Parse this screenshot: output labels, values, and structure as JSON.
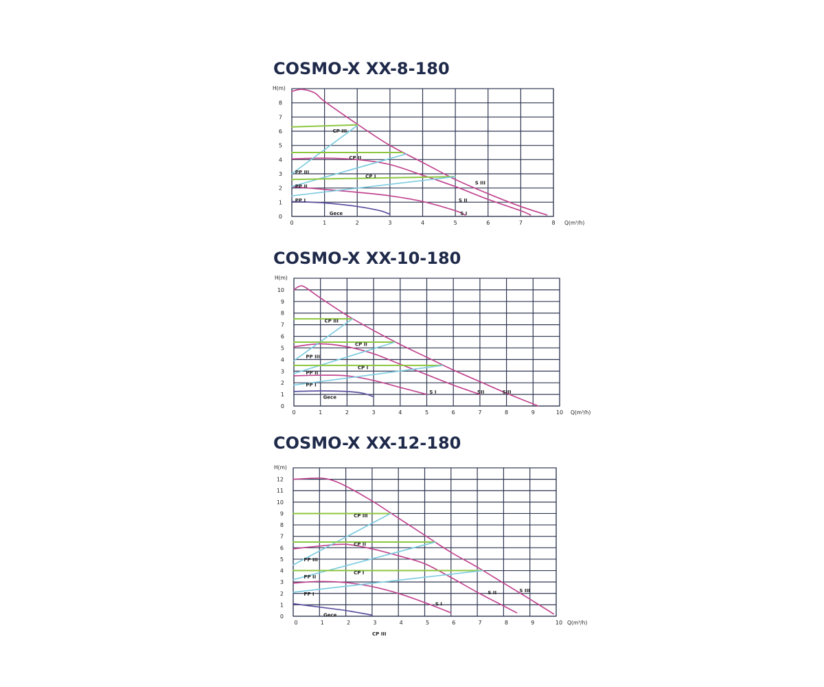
{
  "chart_data": [
    {
      "type": "line",
      "title": "COSMO-X XX-8-180",
      "ylabel": "H(m)",
      "xlabel": "Q(m³/h)",
      "xlim": [
        0,
        8
      ],
      "ylim": [
        0,
        9
      ],
      "xticks": [
        "0",
        "1",
        "2",
        "3",
        "4",
        "5",
        "6",
        "7",
        "8"
      ],
      "yticks": [
        "0",
        "1",
        "2",
        "3",
        "4",
        "5",
        "6",
        "7",
        "8"
      ],
      "grid": true,
      "colors": {
        "speed": "#c0448f",
        "night": "#5a4f9e",
        "cp": "#8cc63f",
        "pp": "#7ccbe0",
        "grid": "#2e3650"
      },
      "series": [
        {
          "kind": "speed",
          "points": [
            [
              0,
              8.8
            ],
            [
              0.3,
              8.95
            ],
            [
              0.7,
              8.7
            ],
            [
              1,
              8.1
            ],
            [
              2,
              6.5
            ],
            [
              3,
              5
            ],
            [
              4,
              3.8
            ],
            [
              5,
              2.6
            ],
            [
              6,
              1.6
            ],
            [
              7,
              0.7
            ],
            [
              7.8,
              0.1
            ]
          ]
        },
        {
          "kind": "speed",
          "points": [
            [
              0,
              4.05
            ],
            [
              1,
              4.1
            ],
            [
              2,
              4
            ],
            [
              3,
              3.65
            ],
            [
              4,
              2.9
            ],
            [
              5,
              2.1
            ],
            [
              6,
              1.2
            ],
            [
              7,
              0.4
            ],
            [
              7.3,
              0.1
            ]
          ]
        },
        {
          "kind": "speed",
          "points": [
            [
              0,
              2.1
            ],
            [
              1,
              1.9
            ],
            [
              2,
              1.7
            ],
            [
              3,
              1.45
            ],
            [
              4,
              1.05
            ],
            [
              5,
              0.4
            ],
            [
              5.3,
              0.1
            ]
          ]
        },
        {
          "kind": "night",
          "points": [
            [
              0,
              1.05
            ],
            [
              1,
              0.95
            ],
            [
              2,
              0.7
            ],
            [
              2.7,
              0.4
            ],
            [
              3,
              0.15
            ]
          ]
        },
        {
          "kind": "cp",
          "points": [
            [
              0,
              6.3
            ],
            [
              2,
              6.45
            ]
          ]
        },
        {
          "kind": "pp",
          "points": [
            [
              0,
              3.0
            ],
            [
              2,
              6.4
            ]
          ]
        },
        {
          "kind": "cp",
          "points": [
            [
              0,
              4.5
            ],
            [
              3.4,
              4.5
            ]
          ]
        },
        {
          "kind": "pp",
          "points": [
            [
              0,
              2.1
            ],
            [
              3.5,
              4.4
            ]
          ]
        },
        {
          "kind": "cp",
          "points": [
            [
              0,
              2.6
            ],
            [
              5,
              2.8
            ]
          ]
        },
        {
          "kind": "pp",
          "points": [
            [
              0,
              1.45
            ],
            [
              5,
              2.8
            ]
          ]
        }
      ],
      "annotations": [
        {
          "text": "CP III",
          "x": 1.25,
          "y": 6.05
        },
        {
          "text": "CP II",
          "x": 1.75,
          "y": 4.15
        },
        {
          "text": "CP I",
          "x": 2.25,
          "y": 2.85
        },
        {
          "text": "PP III",
          "x": 0.1,
          "y": 3.15
        },
        {
          "text": "PP II",
          "x": 0.1,
          "y": 2.15
        },
        {
          "text": "PP I",
          "x": 0.1,
          "y": 1.15
        },
        {
          "text": "Gece",
          "x": 1.15,
          "y": 0.25
        },
        {
          "text": "S III",
          "x": 5.6,
          "y": 2.4
        },
        {
          "text": "S II",
          "x": 5.1,
          "y": 1.15
        },
        {
          "text": "S I",
          "x": 5.15,
          "y": 0.25
        }
      ]
    },
    {
      "type": "line",
      "title": "COSMO-X XX-10-180",
      "ylabel": "H(m)",
      "xlabel": "Q(m³/h)",
      "xlim": [
        0,
        10
      ],
      "ylim": [
        0,
        11
      ],
      "xticks": [
        "0",
        "1",
        "2",
        "3",
        "4",
        "5",
        "6",
        "7",
        "8",
        "9",
        "10"
      ],
      "yticks": [
        "0",
        "1",
        "2",
        "3",
        "4",
        "5",
        "6",
        "7",
        "8",
        "9",
        "10"
      ],
      "grid": true,
      "colors": {
        "speed": "#c0448f",
        "night": "#5a4f9e",
        "cp": "#8cc63f",
        "pp": "#7ccbe0",
        "grid": "#2e3650"
      },
      "series": [
        {
          "kind": "speed",
          "points": [
            [
              0,
              10
            ],
            [
              0.2,
              10.3
            ],
            [
              0.4,
              10.25
            ],
            [
              1,
              9.3
            ],
            [
              2,
              7.8
            ],
            [
              3,
              6.5
            ],
            [
              4,
              5.3
            ],
            [
              5,
              4.2
            ],
            [
              6,
              3.1
            ],
            [
              7,
              2.1
            ],
            [
              8,
              1.1
            ],
            [
              9.2,
              0
            ]
          ]
        },
        {
          "kind": "speed",
          "points": [
            [
              0,
              5.1
            ],
            [
              1,
              5.35
            ],
            [
              2,
              5.1
            ],
            [
              3,
              4.5
            ],
            [
              4,
              3.6
            ],
            [
              5,
              2.7
            ],
            [
              6,
              1.8
            ],
            [
              7,
              1.0
            ]
          ]
        },
        {
          "kind": "speed",
          "points": [
            [
              0,
              2.6
            ],
            [
              1,
              2.65
            ],
            [
              2,
              2.6
            ],
            [
              3,
              2.2
            ],
            [
              4,
              1.6
            ],
            [
              5,
              1.0
            ]
          ]
        },
        {
          "kind": "night",
          "points": [
            [
              0,
              1.25
            ],
            [
              1,
              1.3
            ],
            [
              2,
              1.25
            ],
            [
              2.6,
              1.1
            ],
            [
              3,
              0.8
            ]
          ]
        },
        {
          "kind": "cp",
          "points": [
            [
              0,
              7.5
            ],
            [
              2.2,
              7.5
            ]
          ]
        },
        {
          "kind": "pp",
          "points": [
            [
              0,
              3.9
            ],
            [
              2.2,
              7.5
            ]
          ]
        },
        {
          "kind": "cp",
          "points": [
            [
              0,
              5.5
            ],
            [
              3.8,
              5.5
            ]
          ]
        },
        {
          "kind": "pp",
          "points": [
            [
              0,
              2.8
            ],
            [
              3.8,
              5.5
            ]
          ]
        },
        {
          "kind": "cp",
          "points": [
            [
              0,
              3.5
            ],
            [
              5.6,
              3.5
            ]
          ]
        },
        {
          "kind": "pp",
          "points": [
            [
              0,
              1.8
            ],
            [
              5.6,
              3.5
            ]
          ]
        }
      ],
      "annotations": [
        {
          "text": "CP III",
          "x": 1.15,
          "y": 7.35
        },
        {
          "text": "CP II",
          "x": 2.3,
          "y": 5.35
        },
        {
          "text": "CP I",
          "x": 2.4,
          "y": 3.35
        },
        {
          "text": "PP III",
          "x": 0.45,
          "y": 4.3
        },
        {
          "text": "PP II",
          "x": 0.45,
          "y": 2.9
        },
        {
          "text": "PP I",
          "x": 0.45,
          "y": 1.85
        },
        {
          "text": "Gece",
          "x": 1.1,
          "y": 0.8
        },
        {
          "text": "S I",
          "x": 5.1,
          "y": 1.25
        },
        {
          "text": "SII",
          "x": 6.9,
          "y": 1.25
        },
        {
          "text": "SIII",
          "x": 7.85,
          "y": 1.25
        }
      ]
    },
    {
      "type": "line",
      "title": "COSMO-X XX-12-180",
      "ylabel": "H(m)",
      "xlabel": "Q(m³/h)",
      "xlim": [
        0,
        10
      ],
      "ylim": [
        0,
        13
      ],
      "xticks": [
        "0",
        "1",
        "2",
        "3",
        "4",
        "5",
        "6",
        "7",
        "8",
        "9",
        "10"
      ],
      "yticks": [
        "0",
        "1",
        "2",
        "3",
        "4",
        "5",
        "6",
        "7",
        "8",
        "9",
        "10",
        "11",
        "12"
      ],
      "grid": true,
      "colors": {
        "speed": "#c0448f",
        "night": "#5a4f9e",
        "cp": "#8cc63f",
        "pp": "#7ccbe0",
        "grid": "#2e3650"
      },
      "series": [
        {
          "kind": "speed",
          "points": [
            [
              0,
              12
            ],
            [
              1,
              12.1
            ],
            [
              1.5,
              11.9
            ],
            [
              2,
              11.4
            ],
            [
              3,
              10.1
            ],
            [
              4,
              8.6
            ],
            [
              5,
              7.1
            ],
            [
              6,
              5.6
            ],
            [
              7,
              4.3
            ],
            [
              8,
              2.9
            ],
            [
              9,
              1.5
            ],
            [
              9.9,
              0.2
            ]
          ]
        },
        {
          "kind": "speed",
          "points": [
            [
              0,
              5.9
            ],
            [
              1,
              6.15
            ],
            [
              2,
              6.3
            ],
            [
              3,
              5.9
            ],
            [
              4,
              5.3
            ],
            [
              5,
              4.6
            ],
            [
              6,
              3.4
            ],
            [
              7,
              2.1
            ],
            [
              8,
              0.9
            ],
            [
              8.5,
              0.3
            ]
          ]
        },
        {
          "kind": "speed",
          "points": [
            [
              0,
              2.9
            ],
            [
              1,
              3.05
            ],
            [
              2,
              2.95
            ],
            [
              3,
              2.6
            ],
            [
              4,
              2.0
            ],
            [
              5,
              1.2
            ],
            [
              6,
              0.3
            ]
          ]
        },
        {
          "kind": "night",
          "points": [
            [
              0,
              1.1
            ],
            [
              1,
              0.8
            ],
            [
              2,
              0.5
            ],
            [
              3,
              0.1
            ]
          ]
        },
        {
          "kind": "cp",
          "points": [
            [
              0,
              9
            ],
            [
              3.7,
              9
            ]
          ]
        },
        {
          "kind": "pp",
          "points": [
            [
              0,
              4.5
            ],
            [
              3.7,
              9
            ]
          ]
        },
        {
          "kind": "cp",
          "points": [
            [
              0,
              6.5
            ],
            [
              5.4,
              6.5
            ]
          ]
        },
        {
          "kind": "pp",
          "points": [
            [
              0,
              3.2
            ],
            [
              5.4,
              6.5
            ]
          ]
        },
        {
          "kind": "cp",
          "points": [
            [
              0,
              4
            ],
            [
              7.2,
              4
            ]
          ]
        },
        {
          "kind": "pp",
          "points": [
            [
              0,
              2.1
            ],
            [
              7.2,
              4
            ]
          ]
        }
      ],
      "annotations": [
        {
          "text": "CP III",
          "x": 2.3,
          "y": 8.85
        },
        {
          "text": "CP II",
          "x": 2.3,
          "y": 6.35
        },
        {
          "text": "CP I",
          "x": 2.3,
          "y": 3.85
        },
        {
          "text": "PP III",
          "x": 0.4,
          "y": 5.0
        },
        {
          "text": "PP II",
          "x": 0.4,
          "y": 3.5
        },
        {
          "text": "PP I",
          "x": 0.4,
          "y": 2.0
        },
        {
          "text": "Gece",
          "x": 1.15,
          "y": 0.15
        },
        {
          "text": "S I",
          "x": 5.4,
          "y": 1.1
        },
        {
          "text": "S II",
          "x": 7.4,
          "y": 2.1
        },
        {
          "text": "S III",
          "x": 8.6,
          "y": 2.3
        }
      ],
      "below_axis_note": "CP III"
    }
  ]
}
